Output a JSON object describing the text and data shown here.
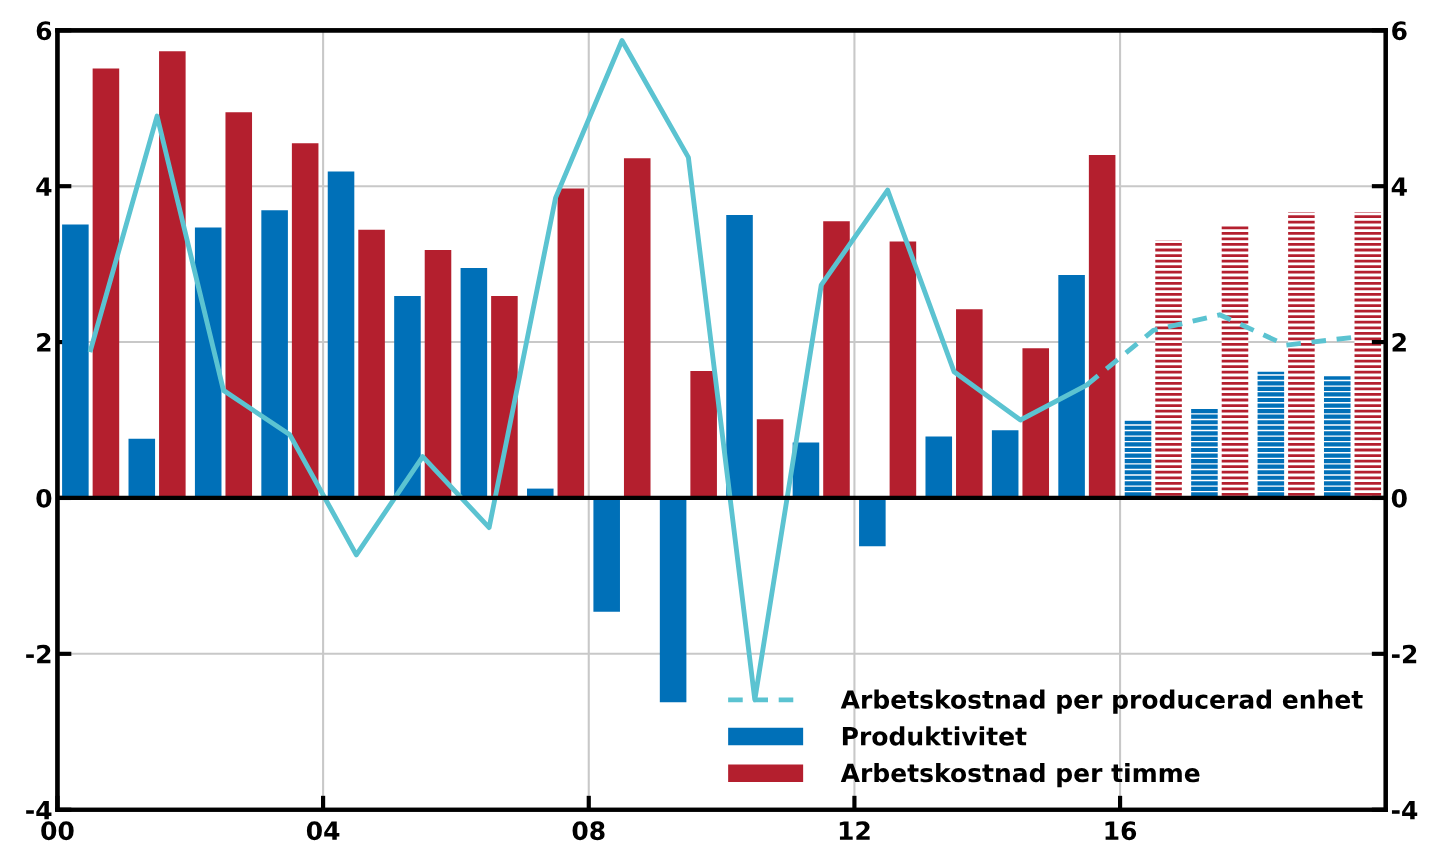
{
  "chart_data": {
    "type": "bar",
    "xlim": [
      2000,
      2020
    ],
    "xticks": [
      {
        "value": 2000,
        "label": "00"
      },
      {
        "value": 2004,
        "label": "04"
      },
      {
        "value": 2008,
        "label": "08"
      },
      {
        "value": 2012,
        "label": "12"
      },
      {
        "value": 2016,
        "label": "16"
      }
    ],
    "ylim": [
      -4,
      6
    ],
    "yticks": [
      -4,
      -2,
      0,
      2,
      4,
      6
    ],
    "y2lim": [
      -4,
      6
    ],
    "y2ticks": [
      -4,
      -2,
      0,
      2,
      4,
      6
    ],
    "grid": true,
    "legend": "bottom right",
    "ref_lines": [
      {
        "axis": "y",
        "value": 0,
        "color": "#000000"
      }
    ],
    "series": [
      {
        "name": "Produktivitet",
        "color": "#0070b8",
        "x": [
          2000.27,
          2001.27,
          2002.27,
          2003.27,
          2004.27,
          2005.27,
          2006.27,
          2007.27,
          2008.27,
          2009.27,
          2010.27,
          2011.27,
          2012.27,
          2013.27,
          2014.27,
          2015.27
        ],
        "values": [
          3.51,
          0.76,
          3.47,
          3.69,
          4.19,
          2.59,
          2.95,
          0.12,
          -1.46,
          -2.62,
          3.63,
          0.71,
          -0.62,
          0.79,
          0.87,
          2.86
        ]
      },
      {
        "name": "Arbetskostnad per timme",
        "color": "#b41f2e",
        "x": [
          2000.73,
          2001.73,
          2002.73,
          2003.73,
          2004.73,
          2005.73,
          2006.73,
          2007.73,
          2008.73,
          2009.73,
          2010.73,
          2011.73,
          2012.73,
          2013.73,
          2014.73,
          2015.73
        ],
        "values": [
          5.51,
          5.73,
          4.95,
          4.55,
          3.44,
          3.18,
          2.59,
          3.97,
          4.36,
          1.63,
          1.01,
          3.55,
          3.29,
          2.42,
          1.92,
          4.4
        ]
      },
      {
        "color": "#0070b8",
        "line_style": "dashed",
        "x": [
          2016.27,
          2017.27,
          2018.27,
          2019.27
        ],
        "values": [
          0.99,
          1.15,
          1.62,
          1.56
        ]
      },
      {
        "color": "#b41f2e",
        "line_style": "dashed",
        "x": [
          2016.73,
          2017.73,
          2018.73,
          2019.73
        ],
        "values": [
          3.31,
          3.49,
          3.67,
          3.67
        ]
      },
      {
        "type": "line",
        "color": "#5bc3d1",
        "line_style": "solid",
        "x": [
          2000.5,
          2001.5,
          2002.5,
          2003.5,
          2004.5,
          2005.5,
          2006.5,
          2007.5,
          2008.5,
          2009.5,
          2010.5,
          2011.5,
          2012.5,
          2013.5,
          2014.5,
          2015.5
        ],
        "values": [
          1.9,
          4.9,
          1.38,
          0.81,
          -0.73,
          0.53,
          -0.38,
          3.85,
          5.87,
          4.37,
          -2.59,
          2.73,
          3.95,
          1.62,
          1.0,
          1.45
        ]
      },
      {
        "type": "line",
        "name": "Arbetskostnad per producerad enhet",
        "color": "#5bc3d1",
        "line_style": "dashed",
        "x": [
          2015.5,
          2016.5,
          2017.5,
          2018.5,
          2019.5
        ],
        "values": [
          1.45,
          2.15,
          2.35,
          1.96,
          2.06
        ]
      }
    ]
  }
}
